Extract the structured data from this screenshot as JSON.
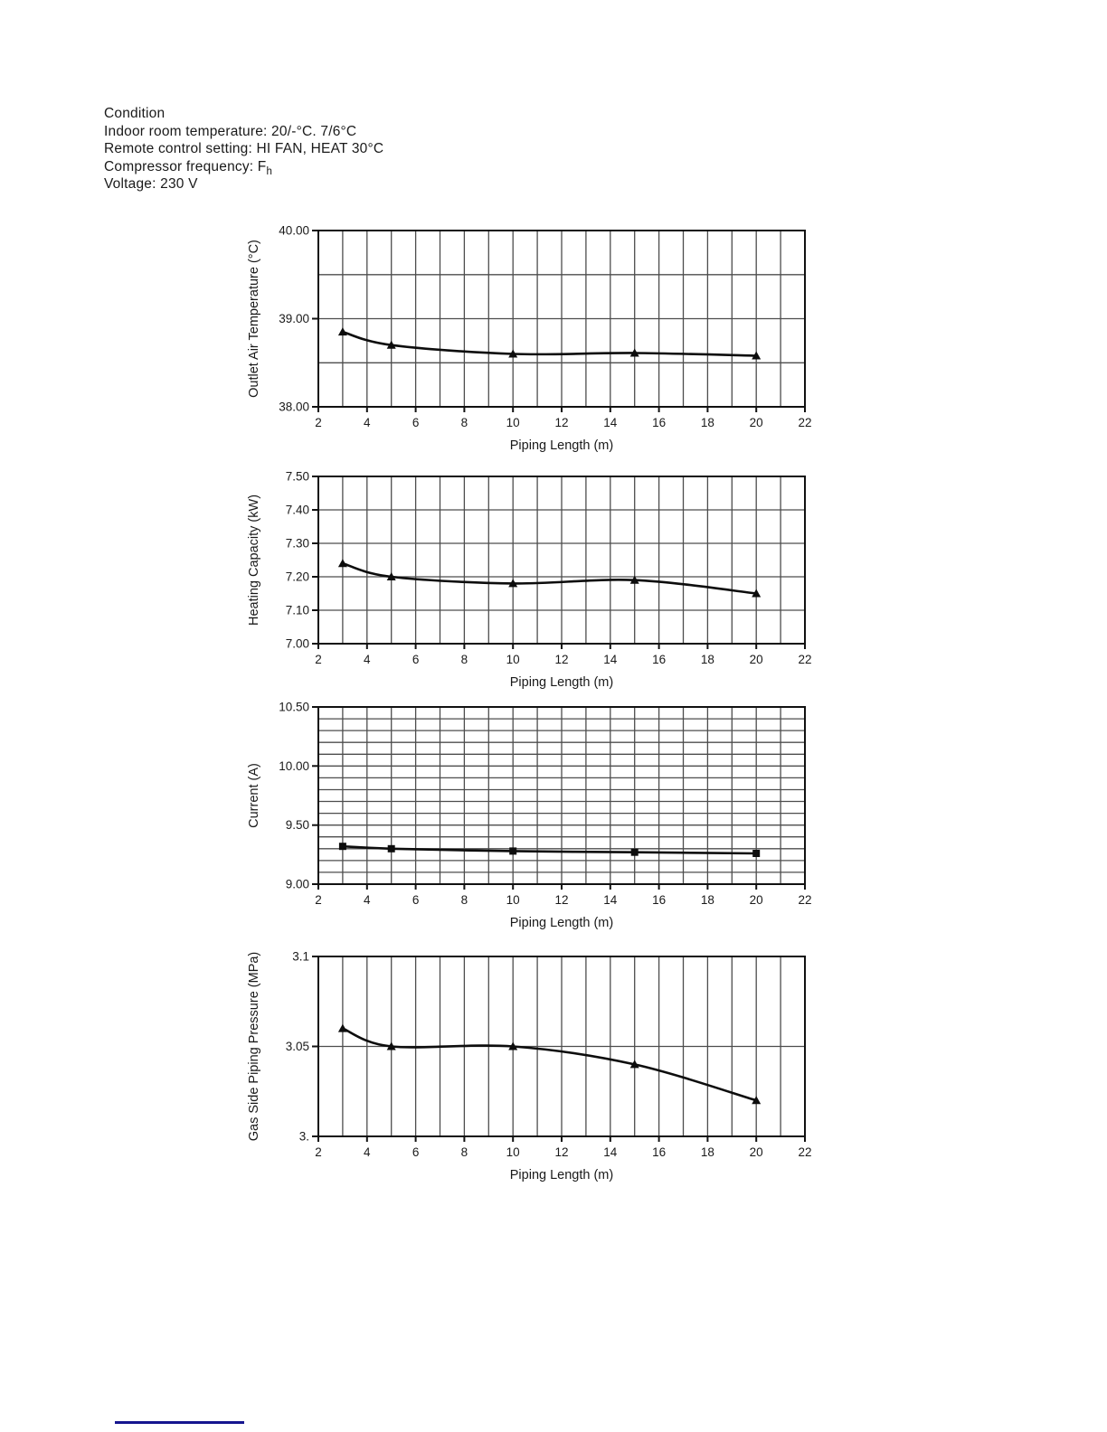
{
  "colors": {
    "ink": "#1a1a1a",
    "grid": "#4d4d4d",
    "axis": "#111111",
    "curve": "#0d0d0d",
    "footer_divider": "#15158f"
  },
  "condition": {
    "title": "Condition",
    "lines": [
      "Indoor room temperature: 20/-°C. 7/6°C",
      "Remote control setting: HI FAN, HEAT 30°C",
      "Compressor frequency: F",
      "Voltage: 230 V"
    ],
    "compressor_frequency_subscript": "h"
  },
  "chart_data": [
    {
      "id": "outlet-air-temperature",
      "type": "line",
      "title": "",
      "xlabel": "Piping Length (m)",
      "ylabel": "Outlet Air Temperature (°C)",
      "legend": "none",
      "grid": true,
      "marker": "triangle",
      "x": [
        3,
        5,
        10,
        15,
        20
      ],
      "y": [
        38.85,
        38.7,
        38.6,
        38.61,
        38.58
      ],
      "xlim": [
        2,
        22
      ],
      "ylim": [
        38.0,
        40.0
      ],
      "x_ticks": [
        2,
        4,
        6,
        8,
        10,
        12,
        14,
        16,
        18,
        20,
        22
      ],
      "x_grid_step": 1,
      "y_grid_step": 0.5,
      "y_ticks": [
        {
          "value": 40.0,
          "label": "40.00"
        },
        {
          "value": 39.0,
          "label": "39.00"
        },
        {
          "value": 38.0,
          "label": "38.00"
        }
      ]
    },
    {
      "id": "heating-capacity",
      "type": "line",
      "title": "",
      "xlabel": "Piping Length (m)",
      "ylabel": "Heating Capacity (kW)",
      "legend": "none",
      "grid": true,
      "marker": "triangle",
      "x": [
        3,
        5,
        10,
        15,
        20
      ],
      "y": [
        7.24,
        7.2,
        7.18,
        7.19,
        7.15
      ],
      "xlim": [
        2,
        22
      ],
      "ylim": [
        7.0,
        7.5
      ],
      "x_ticks": [
        2,
        4,
        6,
        8,
        10,
        12,
        14,
        16,
        18,
        20,
        22
      ],
      "x_grid_step": 1,
      "y_grid_step": 0.1,
      "y_ticks": [
        {
          "value": 7.5,
          "label": "7.50"
        },
        {
          "value": 7.4,
          "label": "7.40"
        },
        {
          "value": 7.3,
          "label": "7.30"
        },
        {
          "value": 7.2,
          "label": "7.20"
        },
        {
          "value": 7.1,
          "label": "7.10"
        },
        {
          "value": 7.0,
          "label": "7.00"
        }
      ]
    },
    {
      "id": "current",
      "type": "line",
      "title": "",
      "xlabel": "Piping Length (m)",
      "ylabel": "Current (A)",
      "legend": "none",
      "grid": true,
      "marker": "square",
      "x": [
        3,
        5,
        10,
        15,
        20
      ],
      "y": [
        9.32,
        9.3,
        9.28,
        9.27,
        9.26
      ],
      "xlim": [
        2,
        22
      ],
      "ylim": [
        9.0,
        10.5
      ],
      "x_ticks": [
        2,
        4,
        6,
        8,
        10,
        12,
        14,
        16,
        18,
        20,
        22
      ],
      "x_grid_step": 1,
      "y_grid_step": 0.1,
      "y_ticks": [
        {
          "value": 10.5,
          "label": "10.50"
        },
        {
          "value": 10.0,
          "label": "10.00"
        },
        {
          "value": 9.5,
          "label": "9.50"
        },
        {
          "value": 9.0,
          "label": "9.00"
        }
      ]
    },
    {
      "id": "gas-side-piping-pressure",
      "type": "line",
      "title": "",
      "xlabel": "Piping Length (m)",
      "ylabel": "Gas Side Piping Pressure (MPa)",
      "legend": "none",
      "grid": true,
      "marker": "triangle",
      "x": [
        3,
        5,
        10,
        15,
        20
      ],
      "y": [
        3.06,
        3.05,
        3.05,
        3.04,
        3.02
      ],
      "xlim": [
        2,
        22
      ],
      "ylim": [
        3.0,
        3.1
      ],
      "x_ticks": [
        2,
        4,
        6,
        8,
        10,
        12,
        14,
        16,
        18,
        20,
        22
      ],
      "x_grid_step": 1,
      "y_grid_step": 0.05,
      "y_ticks": [
        {
          "value": 3.1,
          "label": "3.1"
        },
        {
          "value": 3.05,
          "label": "3.05"
        },
        {
          "value": 3.0,
          "label": "3."
        }
      ]
    }
  ]
}
